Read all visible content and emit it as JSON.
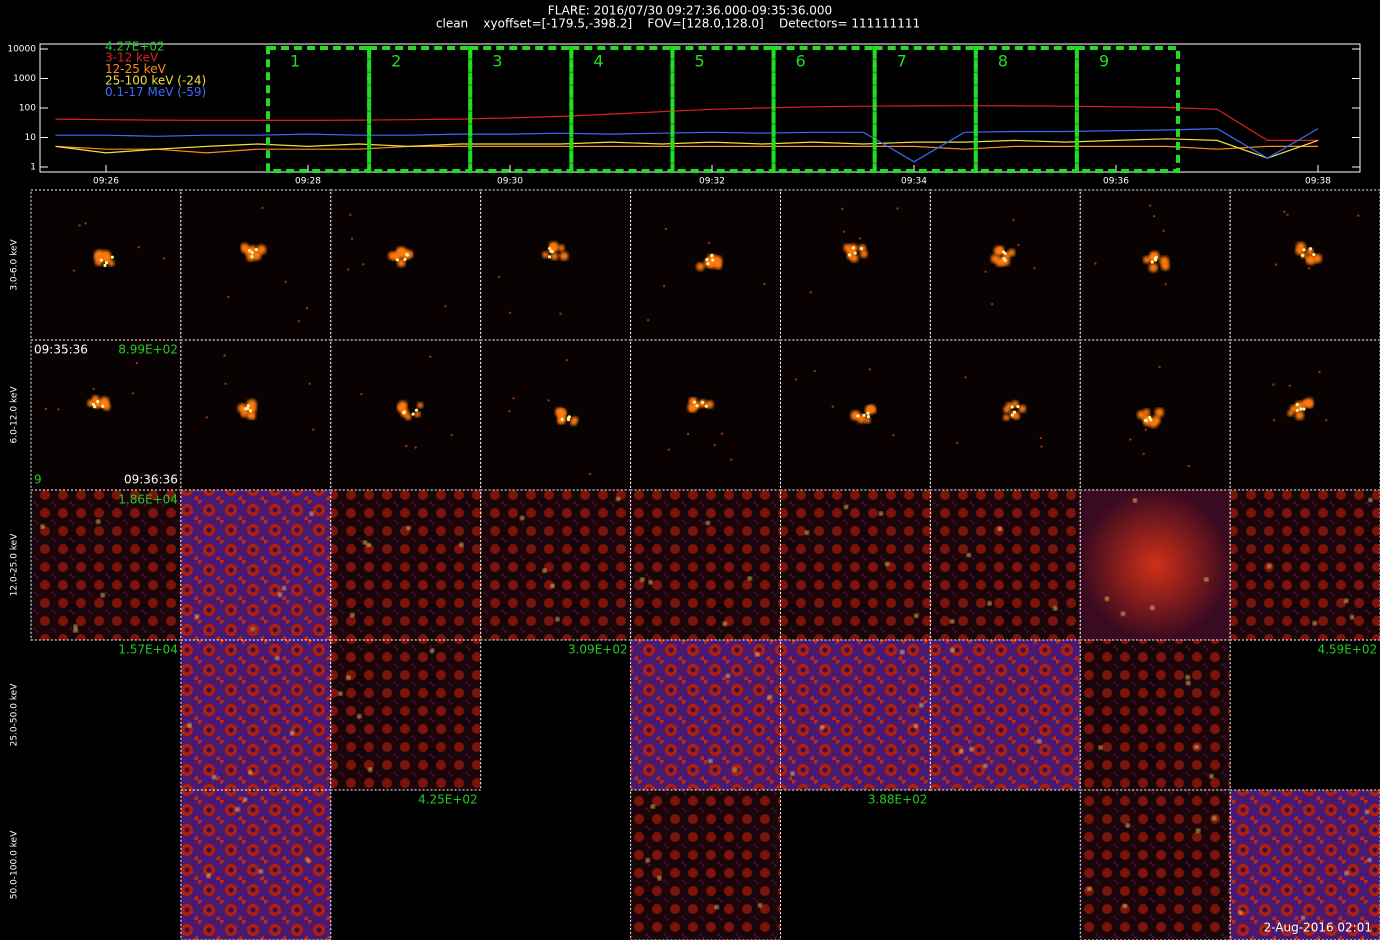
{
  "header": {
    "title": "FLARE: 2016/07/30 09:27:36.000-09:35:36.000",
    "subtitle": "clean    xyoffset=[-179.5,-398.2]    FOV=[128.0,128.0]    Detectors= 111111111"
  },
  "chart_data": {
    "type": "line",
    "log_y": true,
    "categories": [
      null,
      "09:26",
      null,
      null,
      null,
      "09:28",
      null,
      null,
      null,
      "09:30",
      null,
      null,
      null,
      "09:32",
      null,
      null,
      null,
      "09:34",
      null,
      null,
      null,
      "09:36",
      null,
      null,
      null,
      "09:38"
    ],
    "ylim": [
      1,
      10000
    ],
    "yticks": [
      1,
      10,
      100,
      1000,
      10000
    ],
    "peak_label": "4.27E+02",
    "peak_label_color": "#22cc22",
    "intervals": [
      "1",
      "2",
      "3",
      "4",
      "5",
      "6",
      "7",
      "8",
      "9"
    ],
    "interval_color": "#22dd22",
    "series": [
      {
        "name": "3-12 keV",
        "color": "#e02020",
        "values": [
          42,
          40,
          39,
          38,
          38,
          38,
          39,
          40,
          42,
          46,
          52,
          62,
          75,
          90,
          100,
          110,
          115,
          118,
          120,
          118,
          115,
          110,
          105,
          90,
          8,
          8
        ]
      },
      {
        "name": "12-25 keV",
        "color": "#ff8c1a",
        "values": [
          5,
          4,
          4,
          3,
          4,
          4,
          4,
          5,
          5,
          5,
          5,
          5,
          5,
          5,
          5,
          5,
          5,
          5,
          4,
          5,
          5,
          5,
          5,
          4,
          5,
          5
        ]
      },
      {
        "name": "25-100 keV (-24)",
        "color": "#f0e040",
        "values": [
          5,
          3,
          4,
          5,
          6,
          5,
          6,
          5,
          6,
          6,
          6,
          7,
          6,
          7,
          6,
          7,
          6,
          7,
          7,
          8,
          7,
          8,
          9,
          8,
          2,
          8
        ]
      },
      {
        "name": "0.1-17 MeV (-59)",
        "color": "#3a6cff",
        "values": [
          12,
          12,
          11,
          12,
          12,
          13,
          12,
          12,
          13,
          13,
          14,
          13,
          14,
          15,
          14,
          15,
          15,
          1.5,
          15,
          16,
          16,
          17,
          18,
          20,
          2,
          20
        ]
      }
    ]
  },
  "image_grid": {
    "rows": [
      {
        "label": "3.0-6.0 keV",
        "cells": [
          {
            "image": "flare"
          },
          {
            "image": "flare"
          },
          {
            "image": "flare"
          },
          {
            "image": "flare"
          },
          {
            "image": "flare"
          },
          {
            "image": "flare"
          },
          {
            "image": "flare"
          },
          {
            "image": "flare"
          },
          {
            "image": "flare"
          }
        ]
      },
      {
        "label": "6.0-12.0 keV",
        "cells": [
          {
            "image": "flare",
            "labels": [
              {
                "text": "09:35:36",
                "corner": "top-left",
                "color": "#ffffff"
              },
              {
                "text": "8.99E+02",
                "corner": "top-right",
                "color": "#22cc22"
              },
              {
                "text": "9",
                "corner": "bottom-left",
                "color": "#22cc22"
              },
              {
                "text": "09:36:36",
                "corner": "bottom-right",
                "color": "#ffffff"
              }
            ]
          },
          {
            "image": "flare"
          },
          {
            "image": "flare"
          },
          {
            "image": "flare"
          },
          {
            "image": "flare"
          },
          {
            "image": "flare"
          },
          {
            "image": "flare"
          },
          {
            "image": "flare"
          },
          {
            "image": "flare"
          }
        ]
      },
      {
        "label": "12.0-25.0 keV",
        "cells": [
          {
            "image": "noise",
            "labels": [
              {
                "text": "1.86E+04",
                "corner": "top-right",
                "color": "#22cc22"
              }
            ]
          },
          {
            "image": "purple"
          },
          {
            "image": "noise"
          },
          {
            "image": "noise"
          },
          {
            "image": "noise"
          },
          {
            "image": "noise"
          },
          {
            "image": "noise"
          },
          {
            "image": "red"
          },
          {
            "image": "noise"
          }
        ]
      },
      {
        "label": "25.0-50.0 keV",
        "cells": [
          {
            "image": null,
            "labels": [
              {
                "text": "1.57E+04",
                "corner": "top-right",
                "color": "#22cc22"
              }
            ]
          },
          {
            "image": "purple"
          },
          {
            "image": "noise"
          },
          {
            "image": null,
            "labels": [
              {
                "text": "3.09E+02",
                "corner": "top-right",
                "color": "#22cc22"
              }
            ]
          },
          {
            "image": "purple"
          },
          {
            "image": "purple"
          },
          {
            "image": "purple"
          },
          {
            "image": "noise"
          },
          {
            "image": null,
            "labels": [
              {
                "text": "4.59E+02",
                "corner": "top-right",
                "color": "#22cc22"
              }
            ]
          }
        ]
      },
      {
        "label": "50.0-100.0 keV",
        "cells": [
          {
            "image": null
          },
          {
            "image": "purple"
          },
          {
            "image": null,
            "labels": [
              {
                "text": "4.25E+02",
                "corner": "top-right",
                "color": "#22cc22"
              }
            ]
          },
          {
            "image": null
          },
          {
            "image": "noise"
          },
          {
            "image": null,
            "labels": [
              {
                "text": "3.88E+02",
                "corner": "top-right",
                "color": "#22cc22"
              }
            ]
          },
          {
            "image": null
          },
          {
            "image": "noise"
          },
          {
            "image": "purple"
          }
        ]
      }
    ]
  },
  "footer": "2-Aug-2016 02:01"
}
